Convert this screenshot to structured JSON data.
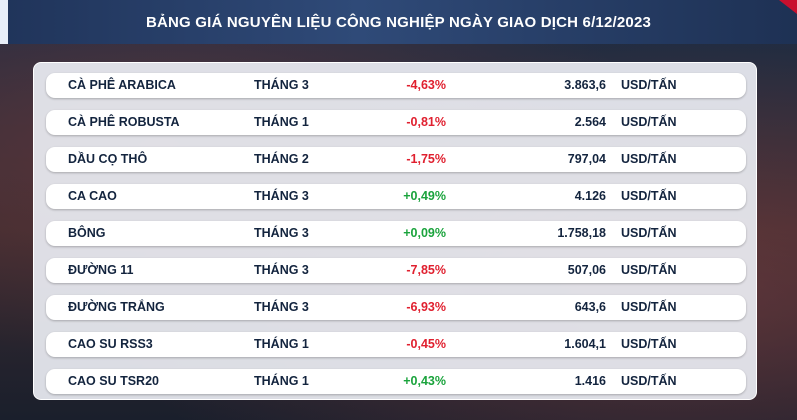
{
  "header": {
    "title": "BẢNG GIÁ NGUYÊN LIỆU CÔNG NGHIỆP NGÀY GIAO DỊCH 6/12/2023"
  },
  "colors": {
    "negative": "#e0202f",
    "positive": "#1aa33c",
    "header": "#2f4a78"
  },
  "rows": [
    {
      "name": "CÀ PHÊ ARABICA",
      "month": "THÁNG 3",
      "change": "-4,63%",
      "price": "3.863,6",
      "unit": "USD/TẤN"
    },
    {
      "name": "CÀ PHÊ ROBUSTA",
      "month": "THÁNG 1",
      "change": "-0,81%",
      "price": "2.564",
      "unit": "USD/TẤN"
    },
    {
      "name": "DẦU CỌ THÔ",
      "month": "THÁNG 2",
      "change": "-1,75%",
      "price": "797,04",
      "unit": "USD/TẤN"
    },
    {
      "name": "CA CAO",
      "month": "THÁNG 3",
      "change": "+0,49%",
      "price": "4.126",
      "unit": "USD/TẤN"
    },
    {
      "name": "BÔNG",
      "month": "THÁNG 3",
      "change": "+0,09%",
      "price": "1.758,18",
      "unit": "USD/TẤN"
    },
    {
      "name": "ĐƯỜNG 11",
      "month": "THÁNG 3",
      "change": "-7,85%",
      "price": "507,06",
      "unit": "USD/TẤN"
    },
    {
      "name": "ĐƯỜNG TRẮNG",
      "month": "THÁNG 3",
      "change": "-6,93%",
      "price": "643,6",
      "unit": "USD/TẤN"
    },
    {
      "name": "CAO SU RSS3",
      "month": "THÁNG 1",
      "change": "-0,45%",
      "price": "1.604,1",
      "unit": "USD/TẤN"
    },
    {
      "name": "CAO SU TSR20",
      "month": "THÁNG 1",
      "change": "+0,43%",
      "price": "1.416",
      "unit": "USD/TẤN"
    }
  ]
}
